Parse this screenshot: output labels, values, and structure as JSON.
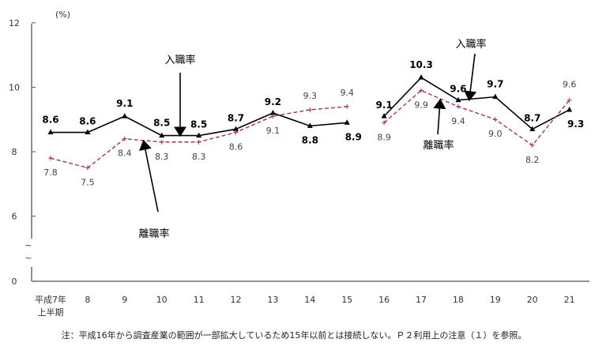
{
  "chart_data": {
    "type": "line",
    "unit_label": "(%)",
    "x": [
      "平成7年\n上半期",
      "8",
      "9",
      "10",
      "11",
      "12",
      "13",
      "14",
      "15",
      "16",
      "17",
      "18",
      "19",
      "20",
      "21"
    ],
    "x_label_line1": "平成7年",
    "x_label_line2": "上半期",
    "yticks": [
      "0",
      "6",
      "8",
      "10",
      "12"
    ],
    "ylim": [
      0,
      12
    ],
    "axis_break": "~",
    "series_break_after": "15",
    "series": [
      {
        "name": "入職率",
        "color": "#000000",
        "marker": "triangle",
        "values": [
          8.6,
          8.6,
          9.1,
          8.5,
          8.5,
          8.7,
          9.2,
          8.8,
          8.9,
          9.1,
          10.3,
          9.6,
          9.7,
          8.7,
          9.3
        ],
        "labels": [
          "8.6",
          "8.6",
          "9.1",
          "8.5",
          "8.5",
          "8.7",
          "9.2",
          "8.8",
          "8.9",
          "9.1",
          "10.3",
          "9.6",
          "9.7",
          "8.7",
          "9.3"
        ]
      },
      {
        "name": "離職率",
        "color": "#a0306e",
        "marker": "plus",
        "style": "dashed",
        "values": [
          7.8,
          7.5,
          8.4,
          8.3,
          8.3,
          8.6,
          9.1,
          9.3,
          9.4,
          8.9,
          9.9,
          9.4,
          9.0,
          8.2,
          9.6
        ],
        "labels": [
          "7.8",
          "7.5",
          "8.4",
          "8.3",
          "8.3",
          "8.6",
          "9.1",
          "9.3",
          "9.4",
          "8.9",
          "9.9",
          "9.4",
          "9.0",
          "8.2",
          "9.6"
        ]
      }
    ],
    "annotations": [
      "入職率",
      "離職率",
      "入職率",
      "離職率"
    ],
    "note": "注：平成16年から調査産業の範囲が一部拡大しているため15年以前とは接続しない。Ｐ２利用上の注意（１）を参照。"
  }
}
